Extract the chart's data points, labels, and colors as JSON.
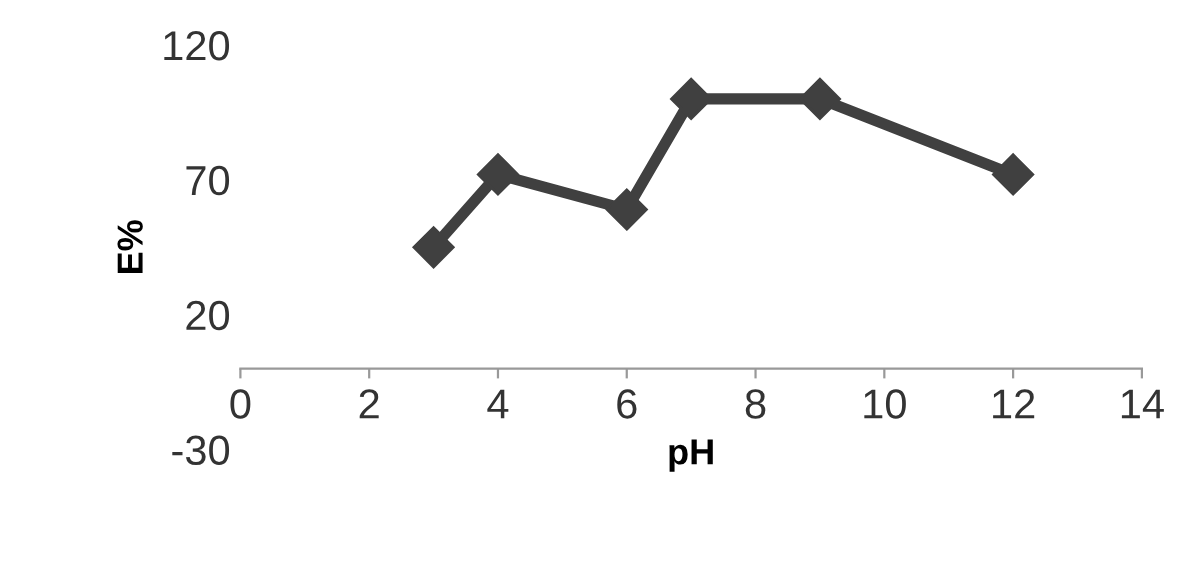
{
  "chart_data": {
    "type": "line",
    "xlabel": "pH",
    "ylabel": "E%",
    "x": [
      3,
      4,
      6,
      7,
      9,
      12
    ],
    "series": [
      {
        "color": "#404040",
        "values": [
          45,
          72,
          59,
          100,
          100,
          72
        ]
      }
    ],
    "xlim": [
      0,
      14
    ],
    "xticks": [
      0,
      2,
      4,
      6,
      8,
      10,
      12,
      14
    ],
    "ylim": [
      -30,
      120
    ],
    "yticks": [
      -30,
      20,
      70,
      120
    ],
    "grid": false,
    "legend": false,
    "marker": "diamond",
    "line_style": "solid"
  }
}
